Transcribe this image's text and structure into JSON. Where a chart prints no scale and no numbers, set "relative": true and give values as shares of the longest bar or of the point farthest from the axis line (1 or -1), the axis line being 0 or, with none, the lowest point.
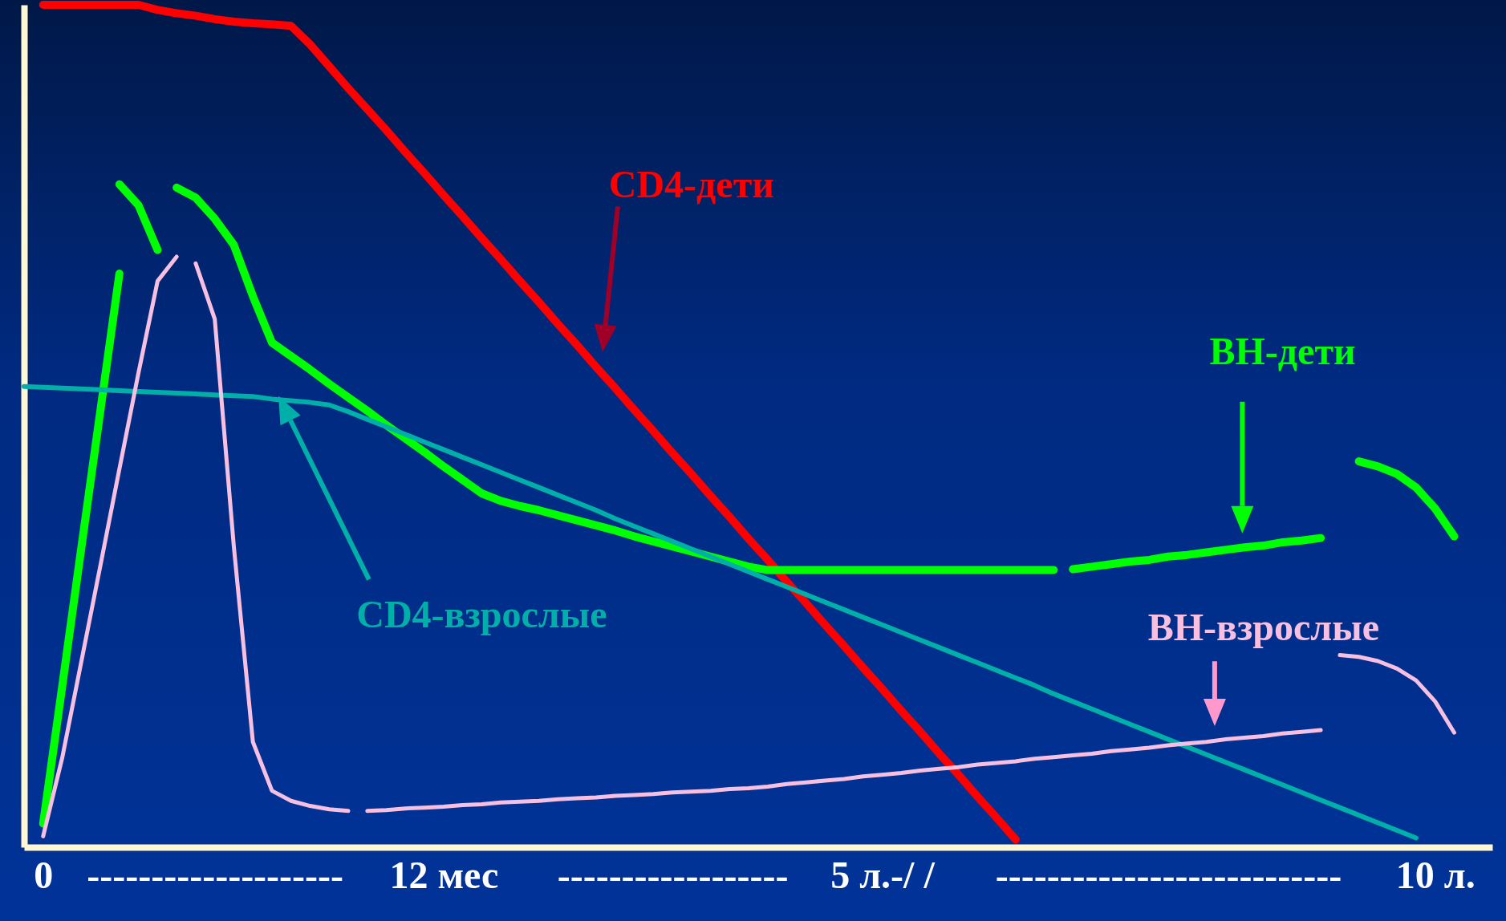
{
  "chart_data": {
    "type": "line",
    "relative": true,
    "tick_labels": "x",
    "categories": [
      null,
      "0",
      null,
      null,
      null,
      null,
      null,
      null,
      null,
      null,
      "--------------------",
      null,
      null,
      null,
      null,
      null,
      null,
      null,
      null,
      null,
      null,
      null,
      "12 мес",
      null,
      null,
      null,
      null,
      null,
      null,
      null,
      null,
      null,
      null,
      null,
      "------------------",
      null,
      null,
      null,
      null,
      null,
      null,
      null,
      null,
      null,
      null,
      "5 л.-/ /",
      null,
      null,
      null,
      null,
      null,
      null,
      null,
      null,
      null,
      null,
      null,
      null,
      null,
      null,
      "---------------------------",
      null,
      null,
      null,
      null,
      null,
      null,
      null,
      null,
      null,
      null,
      null,
      null,
      null,
      "10 л.",
      null,
      null,
      null
    ],
    "series": [
      {
        "name": "CD4-дети",
        "color": "#ff0000",
        "values": [
          null,
          1.0,
          1.0,
          1.0,
          1.0,
          1.0,
          1.0,
          0.994,
          0.99,
          0.987,
          0.983,
          0.98,
          0.978,
          0.977,
          0.975,
          0.953,
          0.927,
          0.901,
          0.876,
          0.851,
          0.825,
          0.8,
          0.774,
          0.749,
          0.723,
          0.698,
          0.672,
          0.647,
          0.621,
          0.596,
          0.57,
          0.545,
          0.519,
          0.494,
          0.468,
          0.443,
          0.417,
          0.392,
          0.366,
          0.341,
          0.315,
          0.29,
          0.264,
          0.239,
          0.213,
          0.188,
          0.162,
          0.137,
          0.111,
          0.086,
          0.06,
          0.035,
          0.009,
          null,
          null,
          null,
          null,
          null,
          null,
          null,
          null,
          null,
          null,
          null,
          null,
          null,
          null,
          null,
          null,
          null,
          null,
          null,
          null,
          null,
          null,
          null,
          null,
          null
        ]
      },
      {
        "color": "#00ff00",
        "values": [
          null,
          0.028,
          0.191,
          0.355,
          0.518,
          0.681,
          null,
          null,
          null,
          null,
          null,
          null,
          null,
          null,
          null,
          null,
          null,
          null,
          null,
          null,
          null,
          null,
          null,
          null,
          null,
          null,
          null,
          null,
          null,
          null,
          null,
          null,
          null,
          null,
          null,
          null,
          null,
          null,
          null,
          null,
          null,
          null,
          null,
          null,
          null,
          null,
          null,
          null,
          null,
          null,
          null,
          null,
          null,
          null,
          null,
          null,
          null,
          null,
          null,
          null,
          null,
          null,
          null,
          null,
          null,
          null,
          null,
          null,
          null,
          null,
          null,
          null,
          null,
          null,
          null,
          null,
          null,
          null
        ]
      },
      {
        "color": "#00ff00",
        "values": [
          null,
          null,
          null,
          null,
          null,
          0.787,
          0.762,
          0.709,
          null,
          null,
          null,
          null,
          null,
          null,
          null,
          null,
          null,
          null,
          null,
          null,
          null,
          null,
          null,
          null,
          null,
          null,
          null,
          null,
          null,
          null,
          null,
          null,
          null,
          null,
          null,
          null,
          null,
          null,
          null,
          null,
          null,
          null,
          null,
          null,
          null,
          null,
          null,
          null,
          null,
          null,
          null,
          null,
          null,
          null,
          null,
          null,
          null,
          null,
          null,
          null,
          null,
          null,
          null,
          null,
          null,
          null,
          null,
          null,
          null,
          null,
          null,
          null,
          null,
          null,
          null,
          null,
          null,
          null
        ]
      },
      {
        "color": "#00ff00",
        "values": [
          null,
          null,
          null,
          null,
          null,
          null,
          null,
          null,
          0.783,
          0.771,
          0.746,
          0.715,
          0.654,
          0.599,
          0.583,
          0.567,
          0.55,
          0.534,
          0.518,
          0.501,
          0.485,
          0.469,
          0.452,
          0.436,
          0.42,
          0.411,
          0.405,
          0.4,
          0.394,
          0.388,
          0.382,
          0.376,
          0.369,
          0.363,
          0.357,
          0.351,
          0.345,
          0.339,
          0.333,
          0.329,
          0.329,
          0.329,
          0.329,
          0.329,
          0.329,
          0.329,
          0.329,
          0.329,
          0.329,
          0.329,
          0.329,
          0.329,
          0.329,
          0.329,
          0.329,
          null,
          null,
          null,
          null,
          null,
          null,
          null,
          null,
          null,
          null,
          null,
          null,
          null,
          null,
          null,
          null,
          null,
          null,
          null,
          null,
          null,
          null,
          null
        ]
      },
      {
        "name": "ВН-дети",
        "color": "#00ff00",
        "values": [
          null,
          null,
          null,
          null,
          null,
          null,
          null,
          null,
          null,
          null,
          null,
          null,
          null,
          null,
          null,
          null,
          null,
          null,
          null,
          null,
          null,
          null,
          null,
          null,
          null,
          null,
          null,
          null,
          null,
          null,
          null,
          null,
          null,
          null,
          null,
          null,
          null,
          null,
          null,
          null,
          null,
          null,
          null,
          null,
          null,
          null,
          null,
          null,
          null,
          null,
          null,
          null,
          null,
          null,
          null,
          0.33,
          0.333,
          0.336,
          0.339,
          0.341,
          0.345,
          0.347,
          0.35,
          0.353,
          0.356,
          0.358,
          0.362,
          0.364,
          0.367,
          null,
          null,
          null,
          null,
          null,
          null,
          null,
          null,
          null
        ]
      },
      {
        "color": "#00ff00",
        "values": [
          null,
          null,
          null,
          null,
          null,
          null,
          null,
          null,
          null,
          null,
          null,
          null,
          null,
          null,
          null,
          null,
          null,
          null,
          null,
          null,
          null,
          null,
          null,
          null,
          null,
          null,
          null,
          null,
          null,
          null,
          null,
          null,
          null,
          null,
          null,
          null,
          null,
          null,
          null,
          null,
          null,
          null,
          null,
          null,
          null,
          null,
          null,
          null,
          null,
          null,
          null,
          null,
          null,
          null,
          null,
          null,
          null,
          null,
          null,
          null,
          null,
          null,
          null,
          null,
          null,
          null,
          null,
          null,
          null,
          null,
          0.458,
          0.452,
          0.443,
          0.427,
          0.402,
          0.369,
          null,
          null
        ]
      },
      {
        "name": "CD4-взрослые",
        "color": "#00b0a8",
        "values": [
          0.547,
          0.546,
          0.545,
          0.544,
          0.543,
          0.542,
          0.541,
          0.54,
          0.539,
          0.538,
          0.537,
          0.536,
          0.535,
          0.532,
          0.53,
          0.528,
          0.525,
          0.517,
          0.508,
          0.499,
          0.49,
          0.481,
          0.472,
          0.463,
          0.454,
          0.445,
          0.436,
          0.427,
          0.418,
          0.409,
          0.4,
          0.39,
          0.381,
          0.372,
          0.363,
          0.354,
          0.345,
          0.336,
          0.327,
          0.318,
          0.309,
          0.3,
          0.291,
          0.282,
          0.273,
          0.264,
          0.255,
          0.246,
          0.237,
          0.228,
          0.219,
          0.21,
          0.201,
          0.192,
          0.182,
          0.173,
          0.164,
          0.155,
          0.146,
          0.137,
          0.128,
          0.119,
          0.11,
          0.101,
          0.092,
          0.083,
          0.074,
          0.065,
          0.056,
          0.047,
          0.038,
          0.029,
          0.02,
          0.011,
          null,
          null,
          null,
          null
        ]
      },
      {
        "color": "#f8c0e0",
        "values": [
          null,
          0.013,
          0.106,
          0.22,
          0.334,
          0.449,
          0.563,
          0.672,
          0.701,
          null,
          null,
          null,
          null,
          null,
          null,
          null,
          null,
          null,
          null,
          null,
          null,
          null,
          null,
          null,
          null,
          null,
          null,
          null,
          null,
          null,
          null,
          null,
          null,
          null,
          null,
          null,
          null,
          null,
          null,
          null,
          null,
          null,
          null,
          null,
          null,
          null,
          null,
          null,
          null,
          null,
          null,
          null,
          null,
          null,
          null,
          null,
          null,
          null,
          null,
          null,
          null,
          null,
          null,
          null,
          null,
          null,
          null,
          null,
          null,
          null,
          null,
          null,
          null,
          null,
          null,
          null,
          null,
          null
        ]
      },
      {
        "color": "#f8c0e0",
        "values": [
          null,
          null,
          null,
          null,
          null,
          null,
          null,
          null,
          null,
          0.693,
          0.627,
          0.357,
          0.125,
          0.067,
          0.055,
          0.049,
          0.045,
          0.043,
          null,
          null,
          null,
          null,
          null,
          null,
          null,
          null,
          null,
          null,
          null,
          null,
          null,
          null,
          null,
          null,
          null,
          null,
          null,
          null,
          null,
          null,
          null,
          null,
          null,
          null,
          null,
          null,
          null,
          null,
          null,
          null,
          null,
          null,
          null,
          null,
          null,
          null,
          null,
          null,
          null,
          null,
          null,
          null,
          null,
          null,
          null,
          null,
          null,
          null,
          null,
          null,
          null,
          null,
          null,
          null,
          null,
          null,
          null,
          null
        ]
      },
      {
        "name": "ВН-взрослые",
        "color": "#f8c0e0",
        "values": [
          null,
          null,
          null,
          null,
          null,
          null,
          null,
          null,
          null,
          null,
          null,
          null,
          null,
          null,
          null,
          null,
          null,
          null,
          0.043,
          0.044,
          0.046,
          0.047,
          0.048,
          0.05,
          0.051,
          0.053,
          0.054,
          0.055,
          0.057,
          0.058,
          0.059,
          0.061,
          0.062,
          0.063,
          0.065,
          0.066,
          0.067,
          0.069,
          0.07,
          0.072,
          0.075,
          0.077,
          0.079,
          0.081,
          0.084,
          0.086,
          0.088,
          0.091,
          0.093,
          0.095,
          0.098,
          0.1,
          0.102,
          0.105,
          0.107,
          0.109,
          0.111,
          0.114,
          0.116,
          0.118,
          0.121,
          0.123,
          0.125,
          0.128,
          0.13,
          0.132,
          0.135,
          0.137,
          0.139,
          null,
          null,
          null,
          null,
          null,
          null,
          null,
          null,
          null
        ]
      },
      {
        "color": "#f8c0e0",
        "values": [
          null,
          null,
          null,
          null,
          null,
          null,
          null,
          null,
          null,
          null,
          null,
          null,
          null,
          null,
          null,
          null,
          null,
          null,
          null,
          null,
          null,
          null,
          null,
          null,
          null,
          null,
          null,
          null,
          null,
          null,
          null,
          null,
          null,
          null,
          null,
          null,
          null,
          null,
          null,
          null,
          null,
          null,
          null,
          null,
          null,
          null,
          null,
          null,
          null,
          null,
          null,
          null,
          null,
          null,
          null,
          null,
          null,
          null,
          null,
          null,
          null,
          null,
          null,
          null,
          null,
          null,
          null,
          null,
          null,
          0.228,
          0.226,
          0.221,
          0.212,
          0.198,
          0.173,
          0.136,
          null,
          null
        ]
      }
    ]
  }
}
